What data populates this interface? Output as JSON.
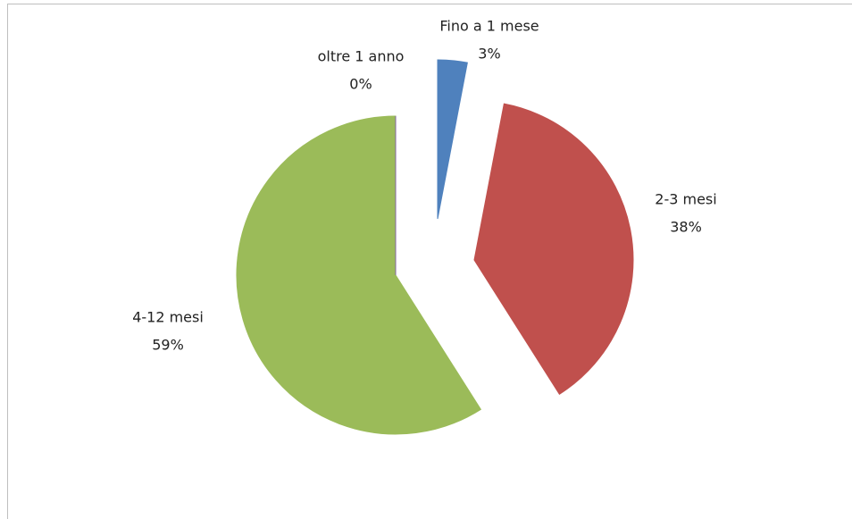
{
  "chart_data": {
    "type": "pie",
    "categories": [
      "Fino a 1 mese",
      "2-3 mesi",
      "4-12 mesi",
      "oltre 1 anno"
    ],
    "values": [
      3,
      38,
      59,
      0
    ],
    "value_labels": [
      "3%",
      "38%",
      "59%",
      "0%"
    ],
    "colors": [
      "#4f81bd",
      "#c0504d",
      "#9bbb59",
      "#8064a2"
    ]
  }
}
